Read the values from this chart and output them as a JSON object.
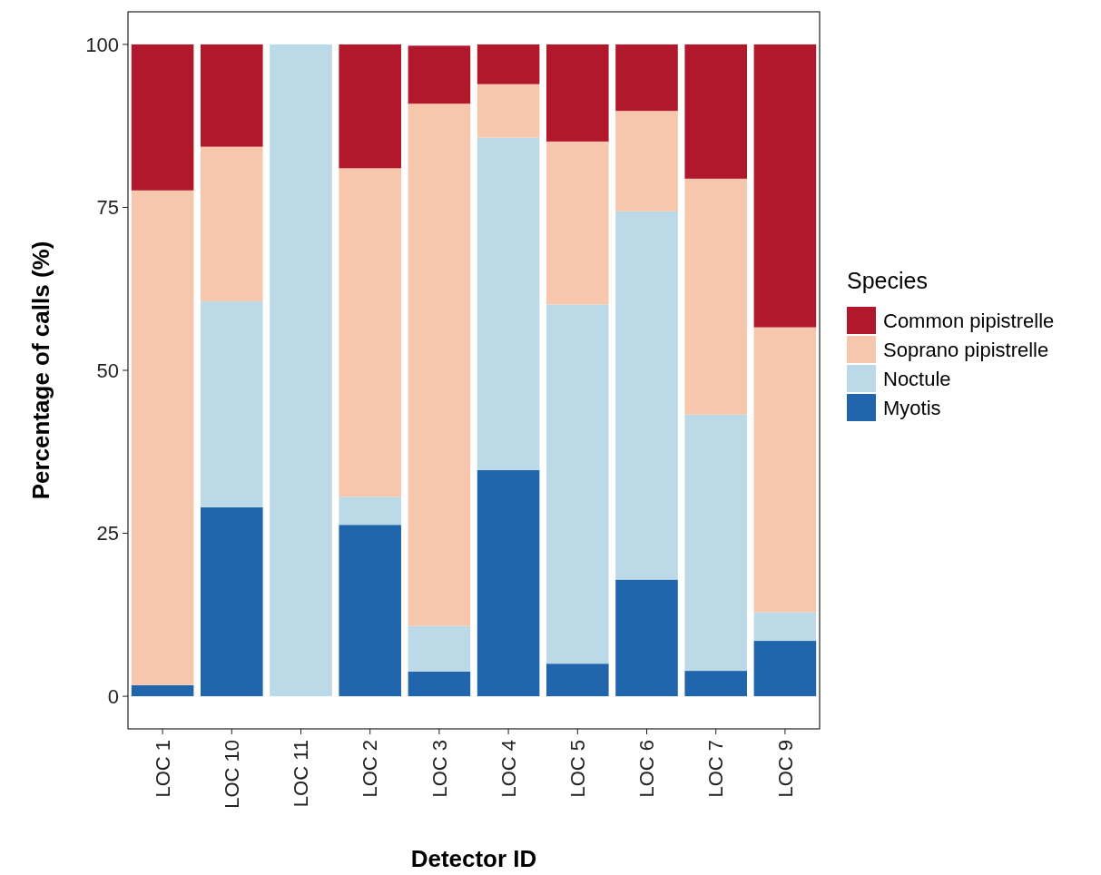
{
  "chart_data": {
    "type": "bar",
    "stacked": true,
    "xlabel": "Detector ID",
    "ylabel": "Percentage of calls (%)",
    "legend_title": "Species",
    "legend": "right",
    "categories": [
      "LOC 1",
      "LOC 10",
      "LOC 11",
      "LOC 2",
      "LOC 3",
      "LOC 4",
      "LOC 5",
      "LOC 6",
      "LOC 7",
      "LOC 9"
    ],
    "series": [
      {
        "name": "Myotis",
        "color": "#2166ac",
        "values": [
          1.7,
          29,
          0,
          26.3,
          3.8,
          34.7,
          5,
          17.9,
          3.9,
          8.5
        ]
      },
      {
        "name": "Noctule",
        "color": "#bcd9e8",
        "values": [
          0,
          31.6,
          100,
          4.3,
          7,
          51,
          55.1,
          56.5,
          39.3,
          4.4
        ]
      },
      {
        "name": "Soprano pipistrelle",
        "color": "#f7c7ad",
        "values": [
          75.9,
          23.7,
          0,
          50.4,
          80.1,
          8.2,
          25,
          15.4,
          36.2,
          43.7
        ]
      },
      {
        "name": "Common pipistrelle",
        "color": "#b2182b",
        "values": [
          22.4,
          15.7,
          0,
          19,
          8.9,
          6.1,
          14.9,
          10.2,
          20.6,
          43.4
        ]
      }
    ],
    "ylim": [
      -5,
      105
    ],
    "yticks": [
      0,
      25,
      50,
      75,
      100
    ],
    "grid": false
  }
}
